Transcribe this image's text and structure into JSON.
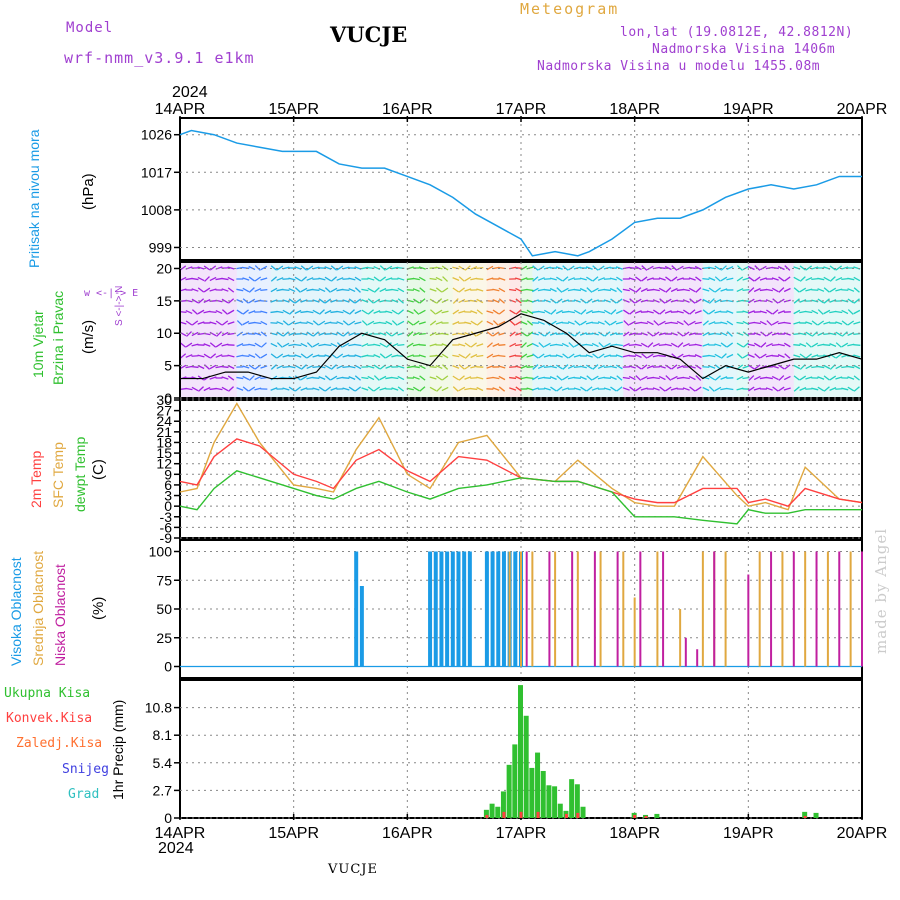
{
  "header": {
    "model_label": "Model",
    "model_name": "wrf-nmm_v3.9.1 e1km",
    "station": "VUCJE",
    "meteogram_label": "Meteogram",
    "lonlat": "lon,lat (19.0812E, 42.8812N)",
    "altitude": "Nadmorska Visina 1406m",
    "model_altitude": "Nadmorska Visina u modelu 1455.08m"
  },
  "time_axis": {
    "year": "2024",
    "ticks": [
      "14APR",
      "15APR",
      "16APR",
      "17APR",
      "18APR",
      "19APR",
      "20APR"
    ]
  },
  "footer_station": "VUCJE",
  "watermark": "made by Angel",
  "colors": {
    "pressure": "#1a9be6",
    "temp2m": "#ff4040",
    "sfc_temp": "#e0a840",
    "dewpoint": "#30c030",
    "high_cloud": "#1a9be6",
    "mid_cloud": "#e0a840",
    "low_cloud": "#c020a0",
    "total_precip": "#30c030",
    "conv_precip": "#ff4040",
    "snow_precip": "#4040e0",
    "graupel": "#30c0c0",
    "frozen_precip": "#ff7030"
  },
  "panels": {
    "pressure": {
      "title": "Pritisak na nivou mora",
      "unit": "(hPa)",
      "yticks": [
        "999",
        "1008",
        "1017",
        "1026"
      ]
    },
    "wind": {
      "title_line1": "10m Vjetar",
      "title_line2": "Brzina i Pravac",
      "unit": "(m/s)",
      "compass": "w <-|-> E",
      "compass_ns": "S <-|-> N",
      "yticks": [
        "0",
        "5",
        "10",
        "15",
        "20"
      ]
    },
    "temp": {
      "label_2m": "2m Temp",
      "label_sfc": "SFC Temp",
      "label_dew": "dewpt Temp",
      "unit": "(C)",
      "yticks": [
        "-9",
        "-6",
        "-3",
        "0",
        "3",
        "6",
        "9",
        "12",
        "15",
        "18",
        "21",
        "24",
        "27",
        "30"
      ]
    },
    "cloud": {
      "label_high": "Visoka Oblacnost",
      "label_mid": "Srednja Oblacnost",
      "label_low": "Niska Oblacnost",
      "unit": "(%)",
      "yticks": [
        "0",
        "25",
        "50",
        "75",
        "100"
      ]
    },
    "precip": {
      "unit": "1hr Precip (mm)",
      "yticks": [
        "0",
        "2.7",
        "5.4",
        "8.1",
        "10.8"
      ],
      "legend": [
        "Ukupna Kisa",
        "Konvek.Kisa",
        "Zaledj.Kisa",
        "Snijeg",
        "Grad"
      ]
    }
  },
  "chart_data": [
    {
      "type": "line",
      "title": "Pritisak na nivou mora",
      "ylabel": "(hPa)",
      "x_unit": "days since 14APR 2024 00UTC",
      "ylim": [
        996,
        1030
      ],
      "series": [
        {
          "name": "Pritisak na nivou mora",
          "x": [
            0,
            0.1,
            0.3,
            0.5,
            0.7,
            0.9,
            1.0,
            1.2,
            1.4,
            1.6,
            1.8,
            2.0,
            2.2,
            2.4,
            2.6,
            2.8,
            3.0,
            3.1,
            3.3,
            3.5,
            3.6,
            3.8,
            4.0,
            4.2,
            4.4,
            4.6,
            4.8,
            5.0,
            5.2,
            5.4,
            5.6,
            5.8,
            6.0
          ],
          "y": [
            1026,
            1027,
            1026,
            1024,
            1023,
            1022,
            1022,
            1022,
            1019,
            1018,
            1018,
            1016,
            1014,
            1011,
            1007,
            1004,
            1001,
            997,
            998,
            997,
            998,
            1001,
            1005,
            1006,
            1006,
            1008,
            1011,
            1013,
            1014,
            1013,
            1014,
            1016,
            1016
          ]
        }
      ]
    },
    {
      "type": "line",
      "title": "10m Vjetar Brzina i Pravac",
      "ylabel": "(m/s)",
      "ylim": [
        0,
        21
      ],
      "series": [
        {
          "name": "10m Vjetar",
          "x": [
            0,
            0.2,
            0.4,
            0.6,
            0.8,
            1.0,
            1.2,
            1.4,
            1.6,
            1.8,
            2.0,
            2.2,
            2.4,
            2.6,
            2.8,
            3.0,
            3.2,
            3.4,
            3.6,
            3.8,
            4.0,
            4.2,
            4.4,
            4.6,
            4.8,
            5.0,
            5.2,
            5.4,
            5.6,
            5.8,
            6.0
          ],
          "y": [
            3,
            3,
            4,
            4,
            3,
            3,
            4,
            8,
            10,
            9,
            6,
            5,
            9,
            10,
            11,
            13,
            12,
            10,
            7,
            8,
            7,
            7,
            6,
            3,
            5,
            4,
            5,
            6,
            6,
            7,
            6
          ]
        }
      ]
    },
    {
      "type": "line",
      "ylabel": "(C)",
      "ylim": [
        -9,
        30
      ],
      "series": [
        {
          "name": "2m Temp",
          "x": [
            0,
            0.15,
            0.3,
            0.5,
            0.7,
            1.0,
            1.2,
            1.35,
            1.55,
            1.75,
            2.0,
            2.2,
            2.45,
            2.7,
            3.0,
            3.3,
            3.5,
            3.8,
            4.0,
            4.2,
            4.35,
            4.6,
            4.9,
            5.0,
            5.15,
            5.35,
            5.5,
            5.8,
            6.0
          ],
          "y": [
            7,
            6,
            14,
            19,
            17,
            9,
            7,
            5,
            13,
            16,
            10,
            7,
            14,
            13,
            8,
            7,
            7,
            4,
            2,
            1,
            1,
            5,
            5,
            1,
            2,
            0,
            5,
            2,
            1
          ]
        },
        {
          "name": "SFC Temp",
          "x": [
            0,
            0.15,
            0.3,
            0.5,
            0.7,
            1.0,
            1.2,
            1.35,
            1.55,
            1.75,
            2.0,
            2.2,
            2.45,
            2.7,
            3.0,
            3.3,
            3.5,
            3.8,
            4.0,
            4.2,
            4.35,
            4.6,
            4.9,
            5.0,
            5.15,
            5.35,
            5.5,
            5.8,
            6.0
          ],
          "y": [
            4,
            5,
            18,
            29,
            18,
            6,
            5,
            4,
            16,
            25,
            9,
            5,
            18,
            20,
            8,
            7,
            13,
            5,
            1,
            0,
            0,
            14,
            3,
            0,
            1,
            -1,
            11,
            2,
            1
          ]
        },
        {
          "name": "dewpt Temp",
          "x": [
            0,
            0.15,
            0.3,
            0.5,
            0.7,
            1.0,
            1.2,
            1.35,
            1.55,
            1.75,
            2.0,
            2.2,
            2.45,
            2.7,
            3.0,
            3.3,
            3.5,
            3.8,
            4.0,
            4.2,
            4.35,
            4.6,
            4.9,
            5.0,
            5.15,
            5.35,
            5.5,
            5.8,
            6.0
          ],
          "y": [
            0,
            -1,
            5,
            10,
            8,
            5,
            3,
            2,
            5,
            7,
            4,
            2,
            5,
            6,
            8,
            7,
            7,
            4,
            -3,
            -3,
            -3,
            -4,
            -5,
            -1,
            -2,
            -2,
            -1,
            -1,
            -1
          ]
        }
      ]
    },
    {
      "type": "bar",
      "ylabel": "(%)",
      "ylim": [
        0,
        100
      ],
      "series": [
        {
          "name": "Visoka Oblacnost",
          "x": [
            1.55,
            1.6,
            2.2,
            2.25,
            2.3,
            2.35,
            2.4,
            2.45,
            2.5,
            2.55,
            2.7,
            2.75,
            2.8,
            2.85,
            2.9,
            2.95,
            3.0
          ],
          "values": [
            100,
            70,
            100,
            100,
            100,
            100,
            100,
            100,
            100,
            100,
            100,
            100,
            100,
            100,
            100,
            100,
            100
          ]
        },
        {
          "name": "Srednja Oblacnost",
          "x": [
            2.9,
            3.0,
            3.1,
            3.3,
            3.5,
            3.7,
            3.9,
            4.0,
            4.2,
            4.4,
            4.6,
            4.7,
            4.8,
            5.1,
            5.3,
            5.5,
            5.7,
            5.9
          ],
          "values": [
            100,
            100,
            100,
            100,
            100,
            100,
            100,
            60,
            100,
            50,
            100,
            100,
            100,
            100,
            100,
            100,
            100,
            100
          ]
        },
        {
          "name": "Niska Oblacnost",
          "x": [
            3.05,
            3.25,
            3.45,
            3.65,
            3.85,
            4.05,
            4.25,
            4.45,
            4.55,
            4.7,
            5.0,
            5.2,
            5.4,
            5.6,
            5.8,
            6.0
          ],
          "values": [
            100,
            100,
            100,
            100,
            100,
            100,
            100,
            25,
            15,
            100,
            80,
            100,
            100,
            100,
            100,
            100
          ]
        }
      ]
    },
    {
      "type": "bar",
      "ylabel": "1hr Precip (mm)",
      "ylim": [
        0,
        13.5
      ],
      "series": [
        {
          "name": "Ukupna Kisa",
          "x": [
            2.7,
            2.75,
            2.8,
            2.85,
            2.9,
            2.95,
            3.0,
            3.05,
            3.1,
            3.15,
            3.2,
            3.25,
            3.3,
            3.35,
            3.4,
            3.45,
            3.5,
            3.55,
            4.0,
            4.1,
            4.2,
            5.5,
            5.6
          ],
          "values": [
            0.8,
            1.4,
            1.1,
            2.6,
            5.2,
            7.2,
            13.0,
            10.0,
            4.9,
            6.4,
            4.6,
            3.2,
            3.1,
            1.4,
            0.7,
            3.8,
            3.3,
            1.1,
            0.5,
            0.3,
            0.4,
            0.6,
            0.5
          ]
        },
        {
          "name": "Konvek.Kisa",
          "x": [
            2.7,
            2.85,
            3.0,
            3.15,
            3.4,
            3.5,
            4.0,
            4.1,
            5.5
          ],
          "values": [
            0.3,
            0.6,
            0.6,
            0.6,
            0.4,
            0.5,
            0.3,
            0.2,
            0.2
          ]
        }
      ]
    }
  ]
}
